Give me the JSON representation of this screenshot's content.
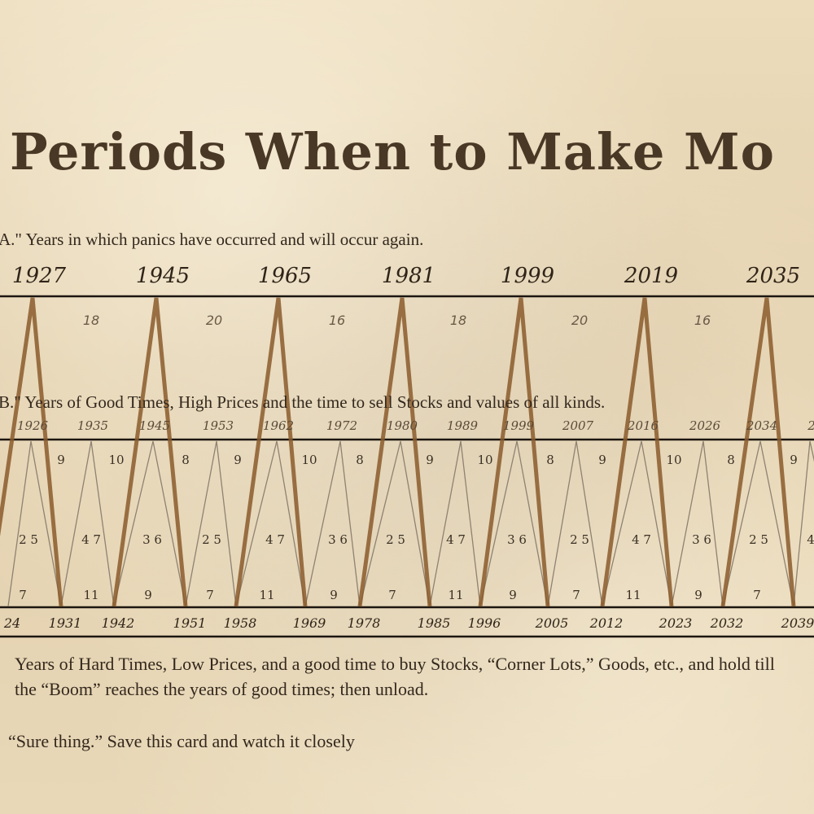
{
  "title": "Periods When to Make Mo",
  "caption_a": "A.\" Years in which panics have occurred and will occur again.",
  "caption_b": "B.\" Years of Good Times, High Prices and the time to sell Stocks and values of all kinds.",
  "panic_years": [
    "1927",
    "1945",
    "1965",
    "1981",
    "1999",
    "2019",
    "2035"
  ],
  "panic_gaps": [
    "18",
    "20",
    "16",
    "18",
    "20",
    "16"
  ],
  "good_years": [
    "1926",
    "1935",
    "1945",
    "1953",
    "1962",
    "1972",
    "1980",
    "1989",
    "1999",
    "2007",
    "2016",
    "2026",
    "2034",
    "2"
  ],
  "hard_years": [
    "24",
    "1931",
    "1942",
    "1951",
    "1958",
    "1969",
    "1978",
    "1985",
    "1996",
    "2005",
    "2012",
    "2023",
    "2032",
    "2039"
  ],
  "cycle_gaps_top": [
    "9",
    "10",
    "8",
    "9",
    "10",
    "8",
    "9",
    "10",
    "8",
    "9",
    "10",
    "8",
    "9"
  ],
  "cycle_pairs_mid": [
    "2 5",
    "4 7",
    "3 6",
    "2 5",
    "4 7",
    "3 6",
    "2 5",
    "4 7",
    "3 6",
    "2 5",
    "4 7",
    "3 6",
    "2 5",
    "4"
  ],
  "cycle_gaps_bottom": [
    "7",
    "11",
    "9",
    "7",
    "11",
    "9",
    "7",
    "11",
    "9",
    "7",
    "11",
    "9",
    "7"
  ],
  "bottom_text": "Years of Hard Times, Low Prices, and a good time to buy Stocks, “Corner Lots,” Goods, etc., and hold till  the “Boom” reaches the years of good times; then unload.",
  "footer_note": "“Sure thing.” Save this card and watch it closely",
  "colors": {
    "ink": "#33281d",
    "paper": "#e6d5b4",
    "panic_lines": "#8a5a2c",
    "cycle_lines": "#8e8272"
  }
}
